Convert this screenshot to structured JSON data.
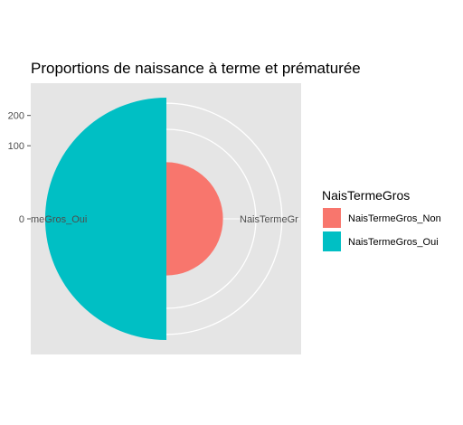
{
  "chart_data": {
    "type": "bar",
    "coord": "polar",
    "title": "Proportions de naissance à terme et prématurée",
    "xlabel": "",
    "ylabel": "",
    "categories": [
      "NaisTermeGros_Non",
      "NaisTermeGros_Oui"
    ],
    "values": [
      60,
      275
    ],
    "colors": [
      "#F8766D",
      "#00BFC4"
    ],
    "yticks": [
      0,
      100,
      200
    ],
    "ylim": [
      0,
      300
    ],
    "grid": true,
    "angle_labels": [
      "NaisTermeGr",
      "meGros_Oui"
    ],
    "legend": {
      "title": "NaisTermeGros",
      "position": "right",
      "entries": [
        "NaisTermeGros_Non",
        "NaisTermeGros_Oui"
      ]
    }
  },
  "colors": {
    "panel": "#E5E5E5",
    "grid": "#FFFFFF",
    "tick": "#4D4D4D"
  }
}
